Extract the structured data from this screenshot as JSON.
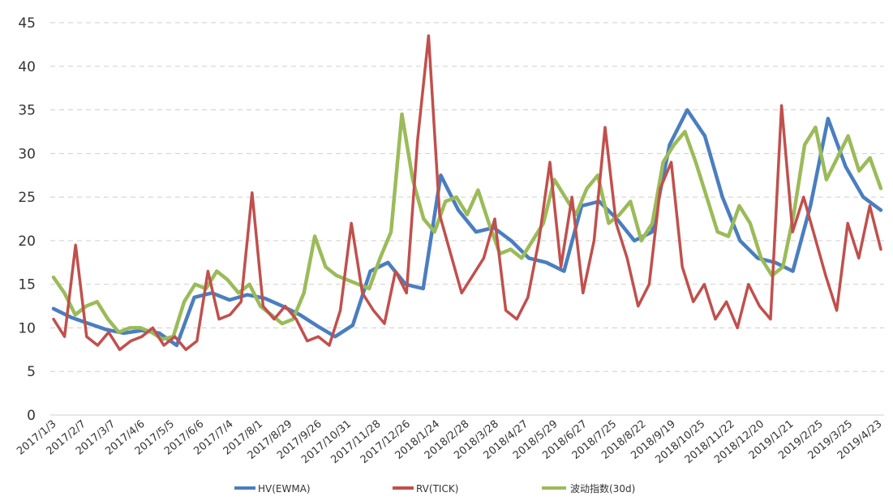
{
  "chart_data": {
    "type": "line",
    "title": "",
    "xlabel": "",
    "ylabel": "",
    "ylim": [
      0,
      45
    ],
    "yticks": [
      0,
      5,
      10,
      15,
      20,
      25,
      30,
      35,
      40,
      45
    ],
    "grid": true,
    "legend_position": "bottom",
    "x_tick_labels": [
      "2017/1/3",
      "2017/2/7",
      "2017/3/7",
      "2017/4/6",
      "2017/5/5",
      "2017/6/6",
      "2017/7/4",
      "2017/8/1",
      "2017/8/29",
      "2017/9/26",
      "2017/10/31",
      "2017/11/28",
      "2017/12/26",
      "2018/1/24",
      "2018/2/28",
      "2018/3/28",
      "2018/4/27",
      "2018/5/29",
      "2018/6/27",
      "2018/7/25",
      "2018/8/22",
      "2018/9/19",
      "2018/10/25",
      "2018/11/22",
      "2018/12/20",
      "2019/1/21",
      "2019/2/25",
      "2019/3/25",
      "2019/4/23"
    ],
    "series": [
      {
        "name": "HV(EWMA)",
        "color": "#4a7ebf",
        "values": [
          12.2,
          11.2,
          10.5,
          9.8,
          9.4,
          9.7,
          9.4,
          8.0,
          13.5,
          14.0,
          13.2,
          13.8,
          13.4,
          12.5,
          11.5,
          10.2,
          9.0,
          10.3,
          16.5,
          17.5,
          15.0,
          14.5,
          27.5,
          23.5,
          21.0,
          21.5,
          20.0,
          18.0,
          17.5,
          16.5,
          24.0,
          24.5,
          22.5,
          20.0,
          21.0,
          31.0,
          35.0,
          32.0,
          25.0,
          20.0,
          18.0,
          17.5,
          16.5,
          24.0,
          34.0,
          28.5,
          25.0,
          23.5
        ]
      },
      {
        "name": "RV(TICK)",
        "color": "#c0504d",
        "values": [
          11.0,
          9.0,
          19.5,
          9.0,
          8.0,
          9.5,
          7.5,
          8.5,
          9.0,
          10.0,
          8.0,
          9.0,
          7.5,
          8.5,
          16.5,
          11.0,
          11.5,
          13.0,
          25.5,
          12.5,
          11.0,
          12.5,
          11.0,
          8.5,
          9.0,
          8.0,
          12.0,
          22.0,
          14.0,
          12.0,
          10.5,
          16.5,
          14.0,
          31.5,
          43.5,
          23.0,
          18.5,
          14.0,
          16.0,
          18.0,
          22.5,
          12.0,
          11.0,
          13.5,
          20.0,
          29.0,
          17.0,
          25.0,
          14.0,
          20.0,
          33.0,
          22.0,
          18.0,
          12.5,
          15.0,
          26.0,
          29.0,
          17.0,
          13.0,
          15.0,
          11.0,
          13.0,
          10.0,
          15.0,
          12.5,
          11.0,
          35.5,
          21.0,
          25.0,
          20.5,
          16.0,
          12.0,
          22.0,
          18.0,
          24.0,
          19.0
        ]
      },
      {
        "name": "波动指数(30d)",
        "color": "#9bbb59",
        "values": [
          15.8,
          14.0,
          11.5,
          12.5,
          13.0,
          11.0,
          9.5,
          10.0,
          10.0,
          9.5,
          8.7,
          9.0,
          13.0,
          15.0,
          14.5,
          16.5,
          15.5,
          14.0,
          15.0,
          12.5,
          11.5,
          10.5,
          11.0,
          14.0,
          20.5,
          17.0,
          16.0,
          15.5,
          15.0,
          14.5,
          18.0,
          21.0,
          34.5,
          27.0,
          22.5,
          21.0,
          24.5,
          25.0,
          23.0,
          25.8,
          22.0,
          18.5,
          19.0,
          18.0,
          20.0,
          22.0,
          27.0,
          25.0,
          23.0,
          26.0,
          27.5,
          22.0,
          23.0,
          24.5,
          20.0,
          22.0,
          29.0,
          31.0,
          32.5,
          29.0,
          25.0,
          21.0,
          20.5,
          24.0,
          22.0,
          18.0,
          16.0,
          17.0,
          23.0,
          31.0,
          33.0,
          27.0,
          29.5,
          32.0,
          28.0,
          29.5,
          26.0
        ]
      }
    ]
  }
}
